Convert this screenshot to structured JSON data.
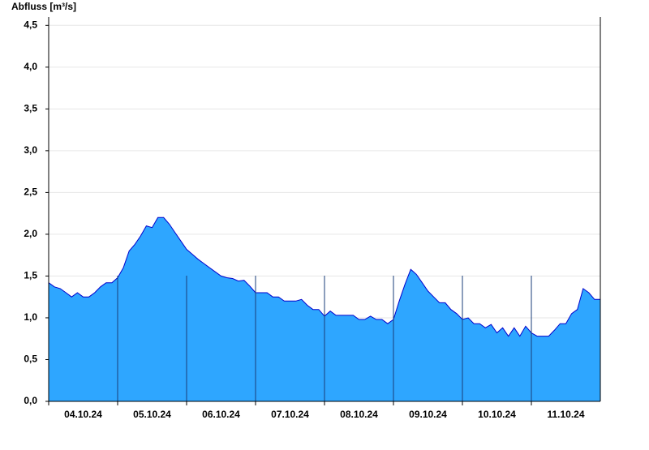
{
  "chart_data": {
    "type": "area",
    "title": "Abfluss [m³/s]",
    "categories": [
      "04.10.24",
      "05.10.24",
      "06.10.24",
      "07.10.24",
      "08.10.24",
      "09.10.24",
      "10.10.24",
      "11.10.24"
    ],
    "values": [
      [
        1.42,
        1.37,
        1.35,
        1.3,
        1.25,
        1.3,
        1.25,
        1.25,
        1.3,
        1.37,
        1.42,
        1.42
      ],
      [
        1.48,
        1.6,
        1.8,
        1.88,
        1.98,
        2.1,
        2.08,
        2.2,
        2.2,
        2.12,
        2.02,
        1.92
      ],
      [
        1.82,
        1.76,
        1.7,
        1.65,
        1.6,
        1.55,
        1.5,
        1.48,
        1.47,
        1.44,
        1.45,
        1.38
      ],
      [
        1.3,
        1.3,
        1.3,
        1.25,
        1.25,
        1.2,
        1.2,
        1.2,
        1.22,
        1.15,
        1.1,
        1.1
      ],
      [
        1.02,
        1.08,
        1.03,
        1.03,
        1.03,
        1.03,
        0.98,
        0.98,
        1.02,
        0.98,
        0.98,
        0.93
      ],
      [
        0.98,
        1.2,
        1.4,
        1.58,
        1.52,
        1.42,
        1.32,
        1.25,
        1.18,
        1.18,
        1.1,
        1.05
      ],
      [
        0.98,
        1.0,
        0.93,
        0.93,
        0.88,
        0.92,
        0.82,
        0.88,
        0.78,
        0.88,
        0.78,
        0.9
      ],
      [
        0.82,
        0.78,
        0.78,
        0.78,
        0.85,
        0.93,
        0.93,
        1.05,
        1.1,
        1.35,
        1.3,
        1.22
      ]
    ],
    "color": "#2ea6ff",
    "line_color": "#0000cc",
    "ylim": [
      0,
      4.6
    ],
    "yticks": [
      {
        "value": 0,
        "label": "0,0"
      },
      {
        "value": 0.5,
        "label": "0,5"
      },
      {
        "value": 1,
        "label": "1,0"
      },
      {
        "value": 1.5,
        "label": "1,5"
      },
      {
        "value": 2,
        "label": "2,0"
      },
      {
        "value": 2.5,
        "label": "2,5"
      },
      {
        "value": 3,
        "label": "3,0"
      },
      {
        "value": 3.5,
        "label": "3,5"
      },
      {
        "value": 4,
        "label": "4,0"
      },
      {
        "value": 4.5,
        "label": "4,5"
      }
    ],
    "grid": true
  }
}
